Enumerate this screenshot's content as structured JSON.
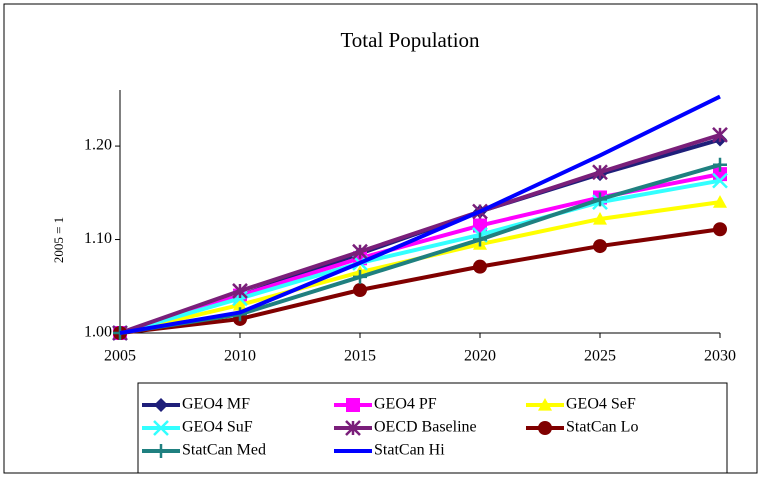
{
  "chart_data": {
    "type": "line",
    "title": "Total Population",
    "y_label": "2005 = 1",
    "x": [
      2005,
      2010,
      2015,
      2020,
      2025,
      2030
    ],
    "xlim": [
      2005,
      2030
    ],
    "xticks": [
      2005,
      2010,
      2015,
      2020,
      2025,
      2030
    ],
    "ylim": [
      1.0,
      1.26
    ],
    "yticks": [
      {
        "value": 1.0,
        "label": "1.00"
      },
      {
        "value": 1.1,
        "label": "1.10"
      },
      {
        "value": 1.2,
        "label": "1.20"
      }
    ],
    "grid": false,
    "legend": "bottom",
    "series": [
      {
        "name": "GEO4 MF",
        "color": "#1f1f7a",
        "marker": "diamond",
        "values": [
          1.0,
          1.04,
          1.085,
          1.13,
          1.17,
          1.207
        ]
      },
      {
        "name": "GEO4 PF",
        "color": "#ff00ff",
        "marker": "square",
        "values": [
          1.0,
          1.04,
          1.08,
          1.115,
          1.145,
          1.17
        ]
      },
      {
        "name": "GEO4 SeF",
        "color": "#ffff00",
        "marker": "triangle",
        "values": [
          1.0,
          1.03,
          1.065,
          1.095,
          1.122,
          1.14
        ]
      },
      {
        "name": "GEO4 SuF",
        "color": "#33ffff",
        "marker": "x",
        "values": [
          1.0,
          1.037,
          1.075,
          1.105,
          1.14,
          1.163
        ]
      },
      {
        "name": "OECD Baseline",
        "color": "#7a1f7a",
        "marker": "star",
        "values": [
          1.0,
          1.045,
          1.087,
          1.13,
          1.172,
          1.212
        ]
      },
      {
        "name": "StatCan Lo",
        "color": "#800000",
        "marker": "circle",
        "values": [
          1.0,
          1.015,
          1.046,
          1.071,
          1.093,
          1.111
        ]
      },
      {
        "name": "StatCan Med",
        "color": "#1f8080",
        "marker": "plus",
        "values": [
          1.0,
          1.02,
          1.06,
          1.1,
          1.143,
          1.18
        ]
      },
      {
        "name": "StatCan Hi",
        "color": "#0000ff",
        "marker": "none",
        "values": [
          1.0,
          1.022,
          1.075,
          1.13,
          1.19,
          1.253
        ]
      }
    ]
  }
}
